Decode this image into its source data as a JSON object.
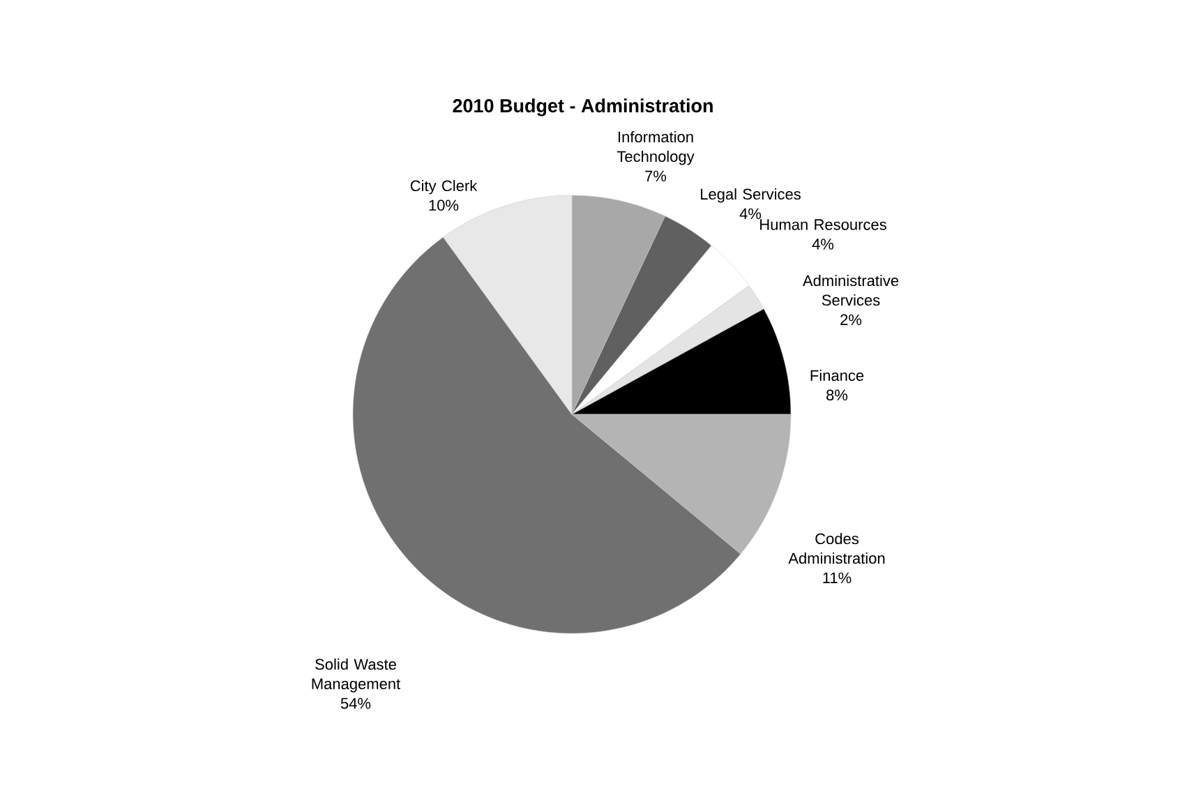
{
  "chart_data": {
    "type": "pie",
    "title": "2010 Budget - Administration",
    "categories": [
      "Information Technology",
      "Legal Services",
      "Human Resources",
      "Administrative Services",
      "Finance",
      "Codes Administration",
      "Solid Waste Management",
      "City Clerk"
    ],
    "values": [
      7,
      4,
      4,
      2,
      8,
      11,
      54,
      10
    ],
    "value_labels": [
      "7%",
      "4%",
      "4%",
      "2%",
      "8%",
      "11%",
      "54%",
      "10%"
    ],
    "colors": [
      "#a8a8a8",
      "#606060",
      "#ffffff",
      "#e4e4e4",
      "#000000",
      "#b4b4b4",
      "#707070",
      "#e8e8e8"
    ]
  }
}
